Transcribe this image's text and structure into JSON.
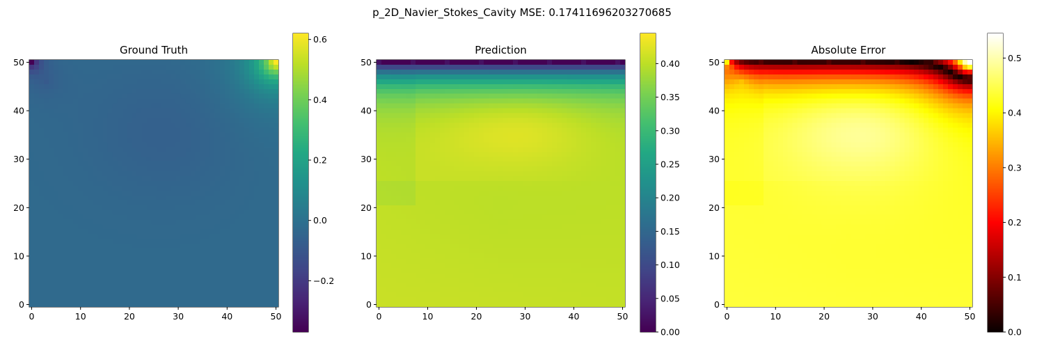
{
  "figure": {
    "suptitle": "p_2D_Navier_Stokes_Cavity MSE: 0.17411696203270685"
  },
  "chart_data": [
    {
      "type": "heatmap",
      "title": "Ground Truth",
      "colormap": "viridis",
      "grid_size": [
        51,
        51
      ],
      "xlim": [
        0,
        50
      ],
      "ylim": [
        0,
        50
      ],
      "x_ticks": [
        0,
        10,
        20,
        30,
        40,
        50
      ],
      "y_ticks": [
        0,
        10,
        20,
        30,
        40,
        50
      ],
      "colorbar": {
        "min": -0.37,
        "max": 0.62,
        "ticks": [
          -0.2,
          0.0,
          0.2,
          0.4,
          0.6
        ],
        "tick_labels": [
          "−0.2",
          "0.0",
          "0.2",
          "0.4",
          "0.6"
        ]
      },
      "field_description": {
        "background": -0.03,
        "center_low": -0.07,
        "top_left_corner": -0.37,
        "top_right_corner": 0.62
      }
    },
    {
      "type": "heatmap",
      "title": "Prediction",
      "colormap": "viridis",
      "grid_size": [
        51,
        51
      ],
      "xlim": [
        0,
        50
      ],
      "ylim": [
        0,
        50
      ],
      "x_ticks": [
        0,
        10,
        20,
        30,
        40,
        50
      ],
      "y_ticks": [
        0,
        10,
        20,
        30,
        40,
        50
      ],
      "colorbar": {
        "min": 0.0,
        "max": 0.445,
        "ticks": [
          0.0,
          0.05,
          0.1,
          0.15,
          0.2,
          0.25,
          0.3,
          0.35,
          0.4
        ],
        "tick_labels": [
          "0.00",
          "0.05",
          "0.10",
          "0.15",
          "0.20",
          "0.25",
          "0.30",
          "0.35",
          "0.40"
        ]
      },
      "field_description": {
        "top_row": 0.0,
        "upper_band_at_y45": 0.22,
        "interior_max_near_x28_y37": 0.44,
        "bottom": 0.405
      }
    },
    {
      "type": "heatmap",
      "title": "Absolute Error",
      "colormap": "hot",
      "grid_size": [
        51,
        51
      ],
      "xlim": [
        0,
        50
      ],
      "ylim": [
        0,
        50
      ],
      "x_ticks": [
        0,
        10,
        20,
        30,
        40,
        50
      ],
      "y_ticks": [
        0,
        10,
        20,
        30,
        40,
        50
      ],
      "colorbar": {
        "min": 0.0,
        "max": 0.545,
        "ticks": [
          0.0,
          0.1,
          0.2,
          0.3,
          0.4,
          0.5
        ],
        "tick_labels": [
          "0.0",
          "0.1",
          "0.2",
          "0.3",
          "0.4",
          "0.5"
        ]
      },
      "field_description": {
        "top_row": 0.0,
        "upper_band": 0.2,
        "interior_max_near_x28_y37": 0.53,
        "bottom": 0.43
      }
    }
  ]
}
